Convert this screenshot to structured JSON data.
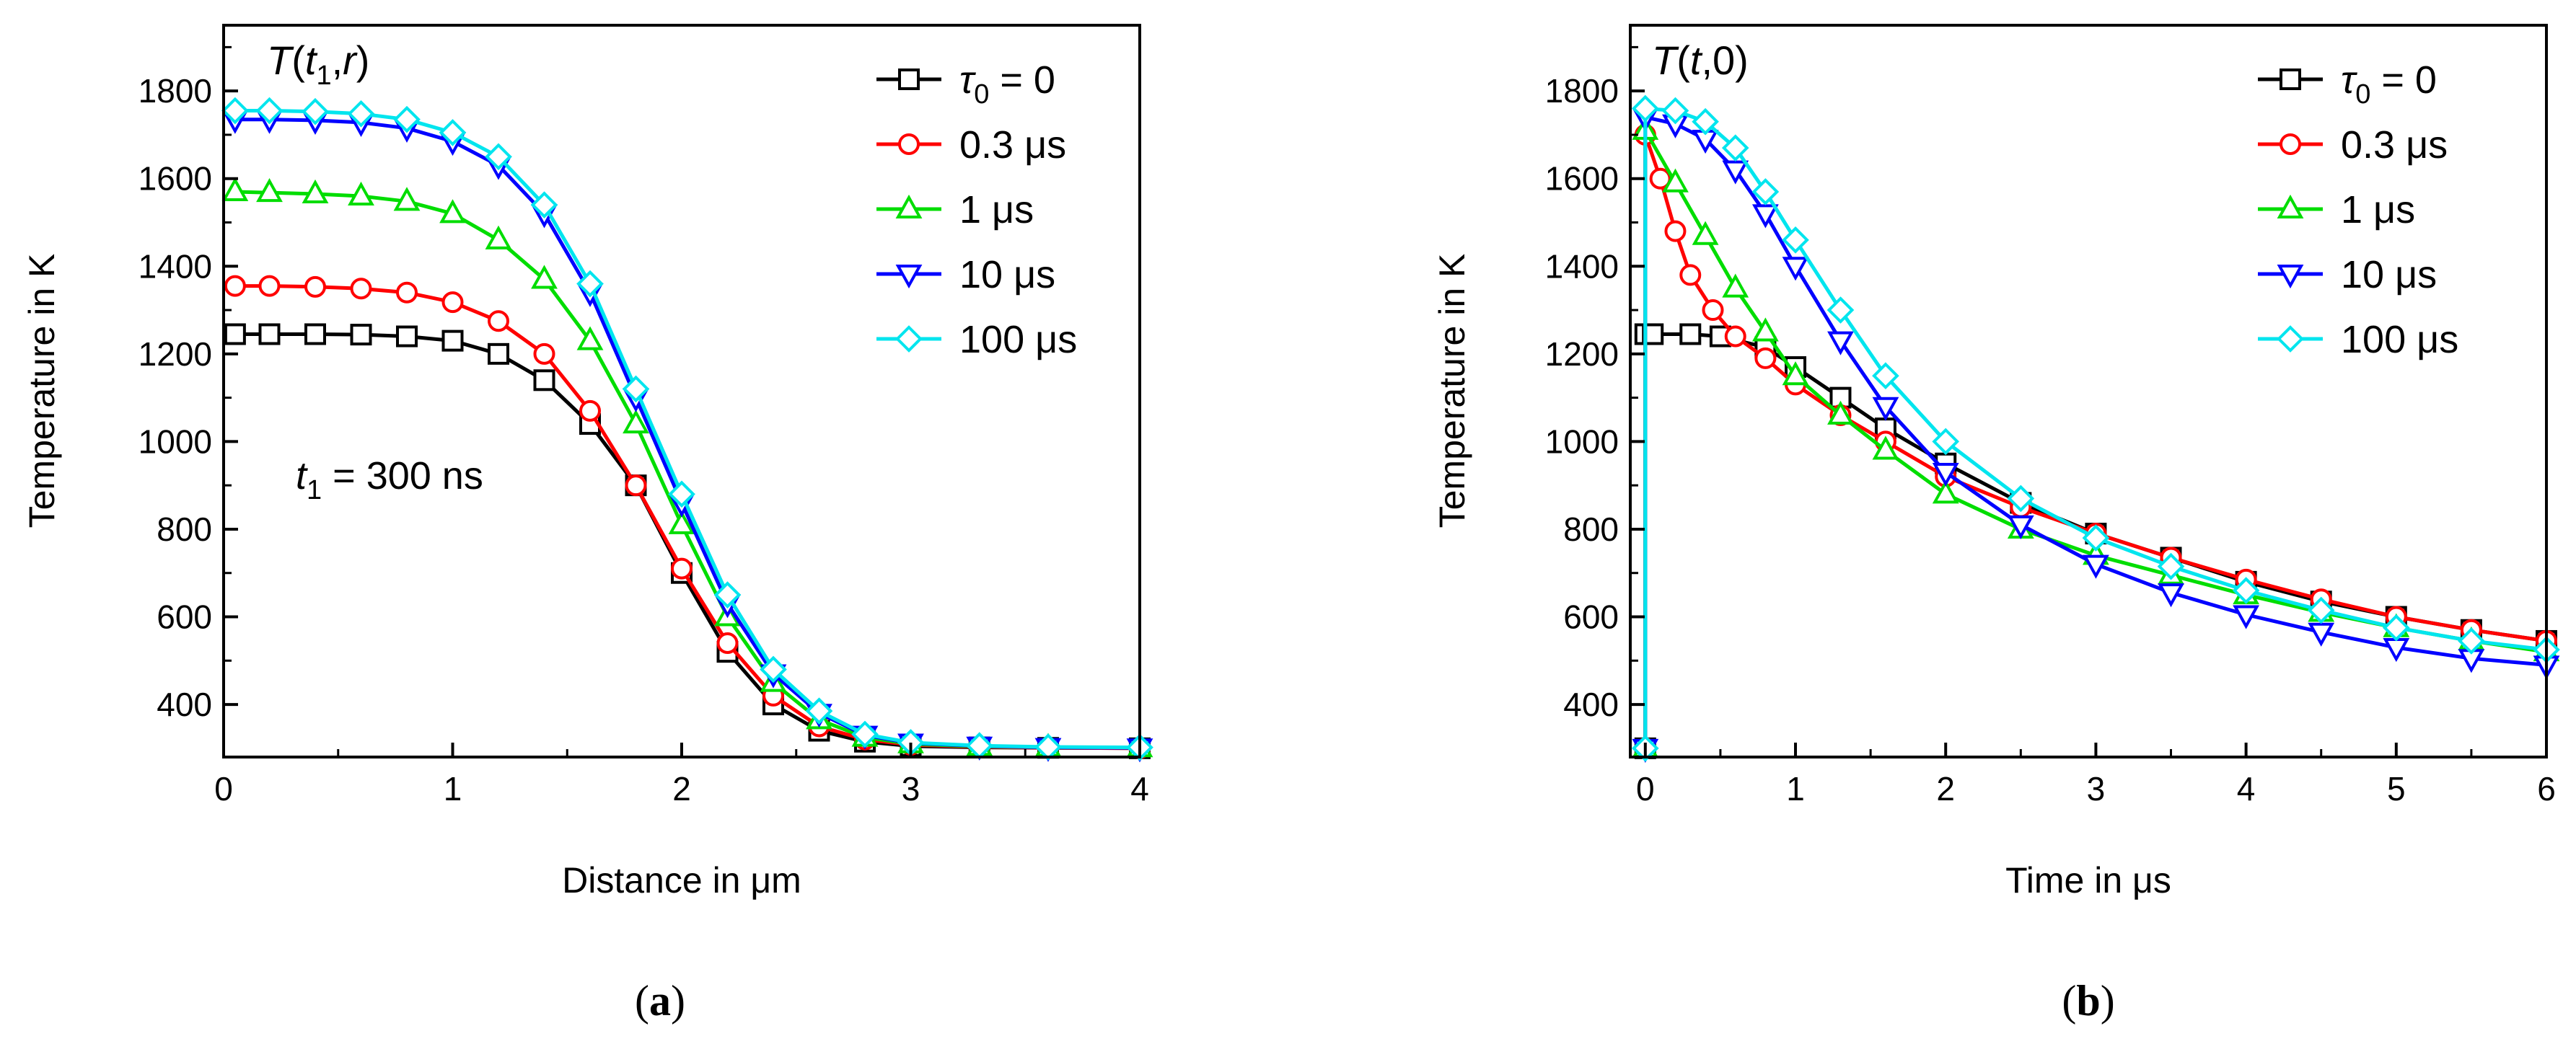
{
  "chart_data": [
    {
      "panel": "a",
      "caption": {
        "open": "(",
        "letter": "a",
        "close": ")"
      },
      "type": "line",
      "title": "T(t1,r)",
      "title_parts": {
        "T": "T",
        "open": "(",
        "t": "t",
        "sub": "1",
        "comma": ",",
        "r": "r",
        "close": ")"
      },
      "annotation": {
        "t": "t",
        "sub": "1",
        "rest": " = 300 ns"
      },
      "xlabel": "Distance in μm",
      "ylabel": "Temperature in K",
      "xlim": [
        0,
        4
      ],
      "ylim": [
        280,
        1950
      ],
      "xticks": [
        0,
        1,
        2,
        3,
        4
      ],
      "yticks": [
        400,
        600,
        800,
        1000,
        1200,
        1400,
        1600,
        1800
      ],
      "legend_position": "top-right",
      "series": [
        {
          "name": "τ0 = 0",
          "color": "#000000",
          "marker": "square",
          "x": [
            0.05,
            0.2,
            0.4,
            0.6,
            0.8,
            1.0,
            1.2,
            1.4,
            1.6,
            1.8,
            2.0,
            2.2,
            2.4,
            2.6,
            2.8,
            3.0,
            3.3,
            3.6,
            4.0
          ],
          "y": [
            1245,
            1245,
            1245,
            1244,
            1240,
            1230,
            1200,
            1140,
            1040,
            900,
            700,
            520,
            400,
            340,
            315,
            305,
            302,
            301,
            300
          ]
        },
        {
          "name": "0.3 μs",
          "color": "#ff0000",
          "marker": "circle",
          "x": [
            0.05,
            0.2,
            0.4,
            0.6,
            0.8,
            1.0,
            1.2,
            1.4,
            1.6,
            1.8,
            2.0,
            2.2,
            2.4,
            2.6,
            2.8,
            3.0,
            3.3,
            3.6,
            4.0
          ],
          "y": [
            1355,
            1355,
            1353,
            1349,
            1340,
            1318,
            1275,
            1200,
            1070,
            900,
            710,
            540,
            420,
            350,
            320,
            308,
            303,
            301,
            300
          ]
        },
        {
          "name": "1 μs",
          "color": "#00dd00",
          "marker": "triangle-up",
          "x": [
            0.05,
            0.2,
            0.4,
            0.6,
            0.8,
            1.0,
            1.2,
            1.4,
            1.6,
            1.8,
            2.0,
            2.2,
            2.4,
            2.6,
            2.8,
            3.0,
            3.3,
            3.6,
            4.0
          ],
          "y": [
            1570,
            1568,
            1565,
            1560,
            1548,
            1520,
            1460,
            1370,
            1230,
            1040,
            810,
            600,
            450,
            365,
            325,
            310,
            304,
            302,
            301
          ]
        },
        {
          "name": "10 μs",
          "color": "#0000ff",
          "marker": "triangle-down",
          "x": [
            0.05,
            0.2,
            0.4,
            0.6,
            0.8,
            1.0,
            1.2,
            1.4,
            1.6,
            1.8,
            2.0,
            2.2,
            2.4,
            2.6,
            2.8,
            3.0,
            3.3,
            3.6,
            4.0
          ],
          "y": [
            1735,
            1735,
            1733,
            1728,
            1715,
            1685,
            1630,
            1520,
            1340,
            1100,
            860,
            630,
            470,
            380,
            330,
            312,
            305,
            302,
            301
          ]
        },
        {
          "name": "100 μs",
          "color": "#00e5ee",
          "marker": "diamond",
          "x": [
            0.05,
            0.2,
            0.4,
            0.6,
            0.8,
            1.0,
            1.2,
            1.4,
            1.6,
            1.8,
            2.0,
            2.2,
            2.4,
            2.6,
            2.8,
            3.0,
            3.3,
            3.6,
            4.0
          ],
          "y": [
            1755,
            1755,
            1753,
            1748,
            1735,
            1705,
            1650,
            1540,
            1360,
            1120,
            880,
            650,
            480,
            385,
            332,
            313,
            306,
            303,
            302
          ]
        }
      ]
    },
    {
      "panel": "b",
      "caption": {
        "open": "(",
        "letter": "b",
        "close": ")"
      },
      "type": "line",
      "title": "T(t,0)",
      "title_parts": {
        "T": "T",
        "open": "(",
        "t": "t",
        "rest": ",0)"
      },
      "xlabel": "Time in μs",
      "ylabel": "Temperature in K",
      "xlim": [
        -0.1,
        6
      ],
      "ylim": [
        280,
        1950
      ],
      "xticks": [
        0,
        1,
        2,
        3,
        4,
        5,
        6
      ],
      "yticks": [
        400,
        600,
        800,
        1000,
        1200,
        1400,
        1600,
        1800
      ],
      "legend_position": "top-right",
      "series": [
        {
          "name": "τ0 = 0",
          "color": "#000000",
          "marker": "square",
          "x": [
            0,
            0,
            0.05,
            0.3,
            0.5,
            0.8,
            1.0,
            1.3,
            1.6,
            2.0,
            2.5,
            3.0,
            3.5,
            4.0,
            4.5,
            5.0,
            5.5,
            6.0
          ],
          "y": [
            300,
            1245,
            1245,
            1245,
            1240,
            1215,
            1170,
            1100,
            1030,
            950,
            860,
            790,
            735,
            680,
            635,
            600,
            570,
            545
          ]
        },
        {
          "name": "0.3 μs",
          "color": "#ff0000",
          "marker": "circle",
          "x": [
            0,
            0,
            0.1,
            0.2,
            0.3,
            0.45,
            0.6,
            0.8,
            1.0,
            1.3,
            1.6,
            2.0,
            2.5,
            3.0,
            3.5,
            4.0,
            4.5,
            5.0,
            5.5,
            6.0
          ],
          "y": [
            300,
            1700,
            1600,
            1480,
            1380,
            1300,
            1240,
            1190,
            1130,
            1060,
            1000,
            920,
            850,
            790,
            735,
            685,
            640,
            600,
            570,
            545
          ]
        },
        {
          "name": "1 μs",
          "color": "#00dd00",
          "marker": "triangle-up",
          "x": [
            0,
            0,
            0.2,
            0.4,
            0.6,
            0.8,
            1.0,
            1.3,
            1.6,
            2.0,
            2.5,
            3.0,
            3.5,
            4.0,
            4.5,
            5.0,
            5.5,
            6.0
          ],
          "y": [
            300,
            1710,
            1590,
            1470,
            1350,
            1250,
            1150,
            1060,
            980,
            880,
            800,
            740,
            695,
            650,
            610,
            575,
            545,
            520
          ]
        },
        {
          "name": "10 μs",
          "color": "#0000ff",
          "marker": "triangle-down",
          "x": [
            0,
            0,
            0.2,
            0.4,
            0.6,
            0.8,
            1.0,
            1.3,
            1.6,
            2.0,
            2.5,
            3.0,
            3.5,
            4.0,
            4.5,
            5.0,
            5.5,
            6.0
          ],
          "y": [
            300,
            1740,
            1725,
            1690,
            1620,
            1520,
            1400,
            1230,
            1080,
            930,
            810,
            720,
            655,
            605,
            565,
            530,
            505,
            490
          ]
        },
        {
          "name": "100 μs",
          "color": "#00e5ee",
          "marker": "diamond",
          "x": [
            0,
            0,
            0.2,
            0.4,
            0.6,
            0.8,
            1.0,
            1.3,
            1.6,
            2.0,
            2.5,
            3.0,
            3.5,
            4.0,
            4.5,
            5.0,
            5.5,
            6.0
          ],
          "y": [
            300,
            1760,
            1755,
            1730,
            1670,
            1570,
            1460,
            1300,
            1150,
            1000,
            870,
            780,
            715,
            660,
            615,
            575,
            545,
            525
          ]
        }
      ]
    }
  ]
}
